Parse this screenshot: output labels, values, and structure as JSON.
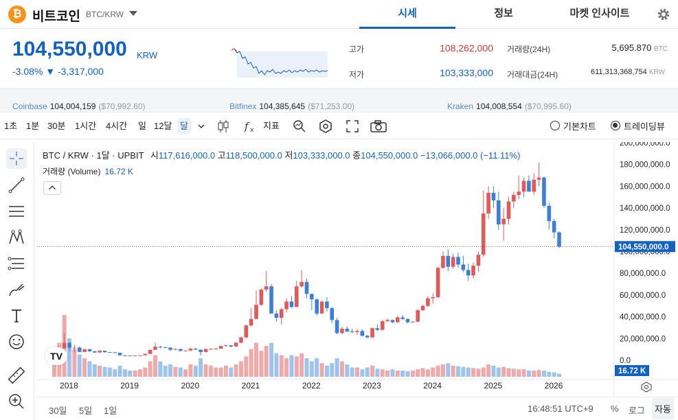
{
  "header": {
    "coin_logo": "₿",
    "coin_name": "비트코인",
    "coin_symbol": "BTC/KRW",
    "tabs": [
      {
        "label": "시세",
        "active": true
      },
      {
        "label": "정보",
        "active": false
      },
      {
        "label": "마켓 인사이트",
        "active": false
      }
    ],
    "icons": {
      "dropdown": "chevron-down-icon",
      "settings": "gear-icon"
    }
  },
  "price": {
    "current": "104,550,000",
    "unit": "KRW",
    "change_pct": "-3.08%",
    "change_arrow": "▼",
    "change_abs": "-3,317,000",
    "high_label": "고가",
    "high_value": "108,262,000",
    "low_label": "저가",
    "low_value": "103,333,000",
    "volume_label": "거래량(24H)",
    "volume_value": "5,695.870",
    "volume_unit": "BTC",
    "amount_label": "거래대금(24H)",
    "amount_value": "611,313,368,754",
    "amount_unit": "KRW"
  },
  "exchanges": [
    {
      "name": "Coinbase",
      "value": "104,004,159",
      "usd": "($70,992.60)"
    },
    {
      "name": "Bitfinex",
      "value": "104,385,645",
      "usd": "($71,253.00)"
    },
    {
      "name": "Kraken",
      "value": "104,008,554",
      "usd": "($70,995.60)"
    }
  ],
  "toolbar": {
    "intervals": [
      "1초",
      "1분",
      "30분",
      "1시간",
      "4시간",
      "일",
      "12달",
      "달"
    ],
    "selected_interval": "달",
    "indicator_label": "지표",
    "chart_mode_basic": "기본차트",
    "chart_mode_tv": "트레이딩뷰",
    "selected_mode": "트레이딩뷰"
  },
  "legend": {
    "title": "BTC / KRW · 1달 · UPBIT",
    "open_label": "시",
    "open": "117,616,000.0",
    "high_label": "고",
    "high": "118,500,000.0",
    "low_label": "저",
    "low": "103,333,000.0",
    "close_label": "종",
    "close": "104,550,000.0",
    "change": "−13,066,000.0 (−11.11%)",
    "volume_label": "거래량 (Volume)",
    "volume_value": "16.72 K"
  },
  "price_axis": {
    "labels": [
      "200,000,000.0",
      "180,000,000.0",
      "160,000,000.0",
      "140,000,000.0",
      "120,000,000.0",
      "100,000,000.0",
      "80,000,000.0",
      "60,000,000.0",
      "40,000,000.0",
      "20,000,000.0",
      "0.0"
    ],
    "last_price_tag": "104,550,000.0",
    "volume_tag": "16.72 K"
  },
  "time_axis": [
    "2018",
    "2019",
    "2020",
    "2021",
    "2022",
    "2023",
    "2024",
    "2025",
    "2026"
  ],
  "bottom": {
    "ranges": [
      "30일",
      "5일",
      "1일"
    ],
    "clock": "16:48:51 UTC+9",
    "pct": "%",
    "log": "로그",
    "auto": "자동"
  },
  "colors": {
    "up": "#e05a5a",
    "down": "#3b7fd9",
    "accent": "#1261c4"
  },
  "chart_data": {
    "type": "candlestick",
    "ylim": [
      0,
      200000000
    ],
    "start": "2017-10",
    "candles": [
      [
        5000000,
        7500000,
        4600000,
        7000000
      ],
      [
        7000000,
        11500000,
        6800000,
        11000000
      ],
      [
        11000000,
        25000000,
        10800000,
        16000000
      ],
      [
        16000000,
        17000000,
        8500000,
        11500000
      ],
      [
        11500000,
        14000000,
        7000000,
        11700000
      ],
      [
        11700000,
        12800000,
        7500000,
        7700000
      ],
      [
        7700000,
        10500000,
        7500000,
        10200000
      ],
      [
        10200000,
        10400000,
        7800000,
        8300000
      ],
      [
        8300000,
        8600000,
        6800000,
        7200000
      ],
      [
        7200000,
        9300000,
        6800000,
        8800000
      ],
      [
        8800000,
        8900000,
        7000000,
        7500000
      ],
      [
        7500000,
        7800000,
        7200000,
        7300000
      ],
      [
        7300000,
        7600000,
        6800000,
        6900000
      ],
      [
        6900000,
        7000000,
        4200000,
        4600000
      ],
      [
        4600000,
        4700000,
        3600000,
        4400000
      ],
      [
        4400000,
        4400000,
        3800000,
        3900000
      ],
      [
        3900000,
        4600000,
        3800000,
        4300000
      ],
      [
        4300000,
        4700000,
        4200000,
        4600000
      ],
      [
        4600000,
        6100000,
        4500000,
        5900000
      ],
      [
        5900000,
        9700000,
        5800000,
        9600000
      ],
      [
        9600000,
        16400000,
        9500000,
        12500000
      ],
      [
        12500000,
        13200000,
        11000000,
        12000000
      ],
      [
        12000000,
        12300000,
        11500000,
        11700000
      ],
      [
        11700000,
        11900000,
        8300000,
        9700000
      ],
      [
        9700000,
        11000000,
        9200000,
        10400000
      ],
      [
        10400000,
        10500000,
        8000000,
        8600000
      ],
      [
        8600000,
        9200000,
        8300000,
        8900000
      ],
      [
        8900000,
        11500000,
        8800000,
        10600000
      ],
      [
        10600000,
        11500000,
        9400000,
        9800000
      ],
      [
        9800000,
        9900000,
        4400000,
        7600000
      ],
      [
        7600000,
        10600000,
        7400000,
        10400000
      ],
      [
        10400000,
        11000000,
        9400000,
        10600000
      ],
      [
        10600000,
        11500000,
        10400000,
        10700000
      ],
      [
        10700000,
        13400000,
        10600000,
        13200000
      ],
      [
        13200000,
        14500000,
        12500000,
        13800000
      ],
      [
        13800000,
        14000000,
        12000000,
        12700000
      ],
      [
        12700000,
        16500000,
        12600000,
        16200000
      ],
      [
        16200000,
        22000000,
        15500000,
        21000000
      ],
      [
        21000000,
        33000000,
        20500000,
        32000000
      ],
      [
        32000000,
        48000000,
        31000000,
        38000000
      ],
      [
        38000000,
        64000000,
        38000000,
        51000000
      ],
      [
        51000000,
        66000000,
        50000000,
        65000000
      ],
      [
        65000000,
        82000000,
        63000000,
        68000000
      ],
      [
        68000000,
        70000000,
        45000000,
        43000000
      ],
      [
        43000000,
        46000000,
        36000000,
        39000000
      ],
      [
        39000000,
        48000000,
        33000000,
        47000000
      ],
      [
        47000000,
        57000000,
        44000000,
        54000000
      ],
      [
        54000000,
        59000000,
        48000000,
        49000000
      ],
      [
        49000000,
        73000000,
        49000000,
        68000000
      ],
      [
        68000000,
        83000000,
        67000000,
        72000000
      ],
      [
        72000000,
        75000000,
        57000000,
        61000000
      ],
      [
        61000000,
        61500000,
        46000000,
        56000000
      ],
      [
        56000000,
        57000000,
        41000000,
        43000000
      ],
      [
        43000000,
        55000000,
        43000000,
        54000000
      ],
      [
        54000000,
        58000000,
        45000000,
        48000000
      ],
      [
        48000000,
        49000000,
        34000000,
        37000000
      ],
      [
        37000000,
        39000000,
        24000000,
        25000000
      ],
      [
        25000000,
        31000000,
        24000000,
        29000000
      ],
      [
        29000000,
        31000000,
        26000000,
        26500000
      ],
      [
        26500000,
        29000000,
        25000000,
        26000000
      ],
      [
        26000000,
        29000000,
        23500000,
        27000000
      ],
      [
        27000000,
        28500000,
        22000000,
        22500000
      ],
      [
        22500000,
        23500000,
        20500000,
        21000000
      ],
      [
        21000000,
        30000000,
        20500000,
        29500000
      ],
      [
        29500000,
        33000000,
        27000000,
        28000000
      ],
      [
        28000000,
        37000000,
        27000000,
        36000000
      ],
      [
        36000000,
        38500000,
        35000000,
        37000000
      ],
      [
        37000000,
        37500000,
        34000000,
        35000000
      ],
      [
        35000000,
        40500000,
        34000000,
        39500000
      ],
      [
        39500000,
        41500000,
        37000000,
        38000000
      ],
      [
        38000000,
        38500000,
        34000000,
        35000000
      ],
      [
        35000000,
        36000000,
        34500000,
        35500000
      ],
      [
        35500000,
        47000000,
        35000000,
        46000000
      ],
      [
        46000000,
        51000000,
        45500000,
        50000000
      ],
      [
        50000000,
        59000000,
        49000000,
        57000000
      ],
      [
        57000000,
        61500000,
        52000000,
        58000000
      ],
      [
        58000000,
        86000000,
        57500000,
        85000000
      ],
      [
        85000000,
        100000000,
        84000000,
        96000000
      ],
      [
        96000000,
        102000000,
        82000000,
        86000000
      ],
      [
        86000000,
        98000000,
        84000000,
        95000000
      ],
      [
        95000000,
        99000000,
        85000000,
        88000000
      ],
      [
        88000000,
        96000000,
        81000000,
        83000000
      ],
      [
        83000000,
        89000000,
        73000000,
        78000000
      ],
      [
        78000000,
        90000000,
        75000000,
        87000000
      ],
      [
        87000000,
        100000000,
        81000000,
        97000000
      ],
      [
        97000000,
        156000000,
        95000000,
        135000000
      ],
      [
        135000000,
        160000000,
        130000000,
        154000000
      ],
      [
        154000000,
        160000000,
        140000000,
        147000000
      ],
      [
        147000000,
        155000000,
        120000000,
        125000000
      ],
      [
        125000000,
        140000000,
        110000000,
        130000000
      ],
      [
        130000000,
        150000000,
        125000000,
        146000000
      ],
      [
        146000000,
        155000000,
        140000000,
        152000000
      ],
      [
        152000000,
        170000000,
        148000000,
        155000000
      ],
      [
        155000000,
        168000000,
        150000000,
        165000000
      ],
      [
        165000000,
        170000000,
        155000000,
        155000000
      ],
      [
        155000000,
        172000000,
        152000000,
        166000000
      ],
      [
        166000000,
        182000000,
        160000000,
        168000000
      ],
      [
        168000000,
        169000000,
        140000000,
        142000000
      ],
      [
        142000000,
        145000000,
        120000000,
        128000000
      ],
      [
        128000000,
        130000000,
        112000000,
        117600000
      ],
      [
        117616000,
        118500000,
        103333000,
        104550000
      ]
    ],
    "volume_rel": [
      0.25,
      0.55,
      1.0,
      0.62,
      0.45,
      0.36,
      0.3,
      0.25,
      0.2,
      0.18,
      0.16,
      0.15,
      0.12,
      0.18,
      0.12,
      0.1,
      0.1,
      0.12,
      0.15,
      0.25,
      0.35,
      0.25,
      0.18,
      0.2,
      0.16,
      0.15,
      0.12,
      0.2,
      0.18,
      0.3,
      0.2,
      0.18,
      0.15,
      0.15,
      0.18,
      0.15,
      0.2,
      0.25,
      0.33,
      0.45,
      0.55,
      0.42,
      0.5,
      0.55,
      0.38,
      0.35,
      0.3,
      0.35,
      0.33,
      0.38,
      0.3,
      0.25,
      0.3,
      0.22,
      0.18,
      0.22,
      0.3,
      0.25,
      0.2,
      0.15,
      0.15,
      0.12,
      0.15,
      0.18,
      0.13,
      0.12,
      0.1,
      0.12,
      0.1,
      0.1,
      0.09,
      0.1,
      0.12,
      0.14,
      0.12,
      0.15,
      0.18,
      0.2,
      0.22,
      0.18,
      0.17,
      0.16,
      0.15,
      0.14,
      0.13,
      0.15,
      0.2,
      0.18,
      0.15,
      0.16,
      0.14,
      0.13,
      0.12,
      0.12,
      0.1,
      0.1,
      0.11,
      0.1,
      0.08,
      0.07,
      0.05
    ]
  }
}
